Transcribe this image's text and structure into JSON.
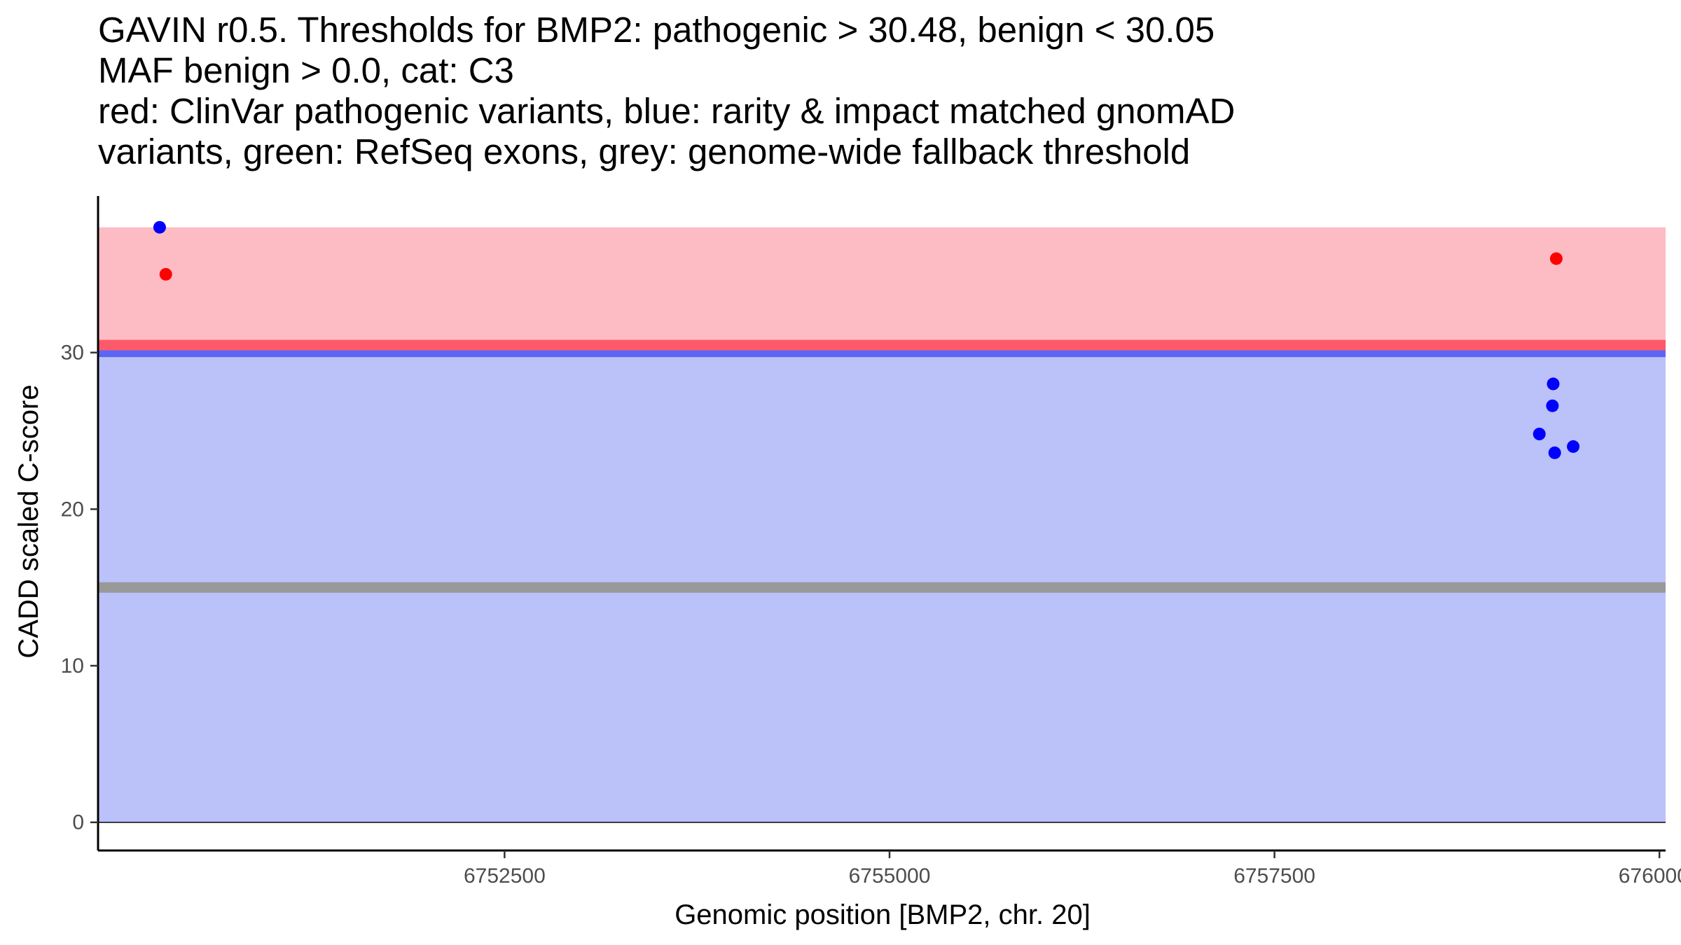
{
  "chart_data": {
    "type": "scatter",
    "title_lines": [
      "GAVIN r0.5. Thresholds for BMP2: pathogenic > 30.48, benign < 30.05",
      "MAF benign > 0.0, cat: C3",
      "red: ClinVar pathogenic variants, blue: rarity & impact matched gnomAD",
      "variants, green: RefSeq exons, grey: genome-wide fallback threshold"
    ],
    "xlabel": "Genomic position [BMP2, chr. 20]",
    "ylabel": "CADD scaled C-score",
    "xlim": [
      6749860,
      6760040
    ],
    "ylim": [
      -1.8,
      40.0
    ],
    "x_ticks": [
      {
        "value": 6752500,
        "label": "6752500"
      },
      {
        "value": 6755000,
        "label": "6755000"
      },
      {
        "value": 6757500,
        "label": "6757500"
      },
      {
        "value": 6760000,
        "label": "6760000"
      }
    ],
    "y_ticks": [
      {
        "value": 0,
        "label": "0"
      },
      {
        "value": 10,
        "label": "10"
      },
      {
        "value": 20,
        "label": "20"
      },
      {
        "value": 30,
        "label": "30"
      }
    ],
    "regions": [
      {
        "name": "benign-region",
        "y0": 0,
        "y1": 30.05,
        "color": "#bbc1f9"
      },
      {
        "name": "pathogenic-region",
        "y0": 30.48,
        "y1": 38.0,
        "color": "#fdbcc3"
      }
    ],
    "threshold_lines": [
      {
        "name": "genome-wide-fallback-threshold",
        "y": 15.0,
        "color": "#999999"
      },
      {
        "name": "benign-threshold",
        "y": 30.05,
        "color": "#5b66f5"
      },
      {
        "name": "pathogenic-threshold",
        "y": 30.48,
        "color": "#fc5a6a"
      }
    ],
    "series": [
      {
        "name": "ClinVar pathogenic variants",
        "color": "#ff0000",
        "points": [
          {
            "x": 6750300,
            "y": 35.0
          },
          {
            "x": 6759330,
            "y": 36.0
          }
        ]
      },
      {
        "name": "rarity & impact matched gnomAD variants",
        "color": "#0000ff",
        "points": [
          {
            "x": 6750260,
            "y": 38.0
          },
          {
            "x": 6759310,
            "y": 28.0
          },
          {
            "x": 6759305,
            "y": 26.6
          },
          {
            "x": 6759220,
            "y": 24.8
          },
          {
            "x": 6759320,
            "y": 23.6
          },
          {
            "x": 6759440,
            "y": 24.0
          }
        ]
      }
    ]
  }
}
